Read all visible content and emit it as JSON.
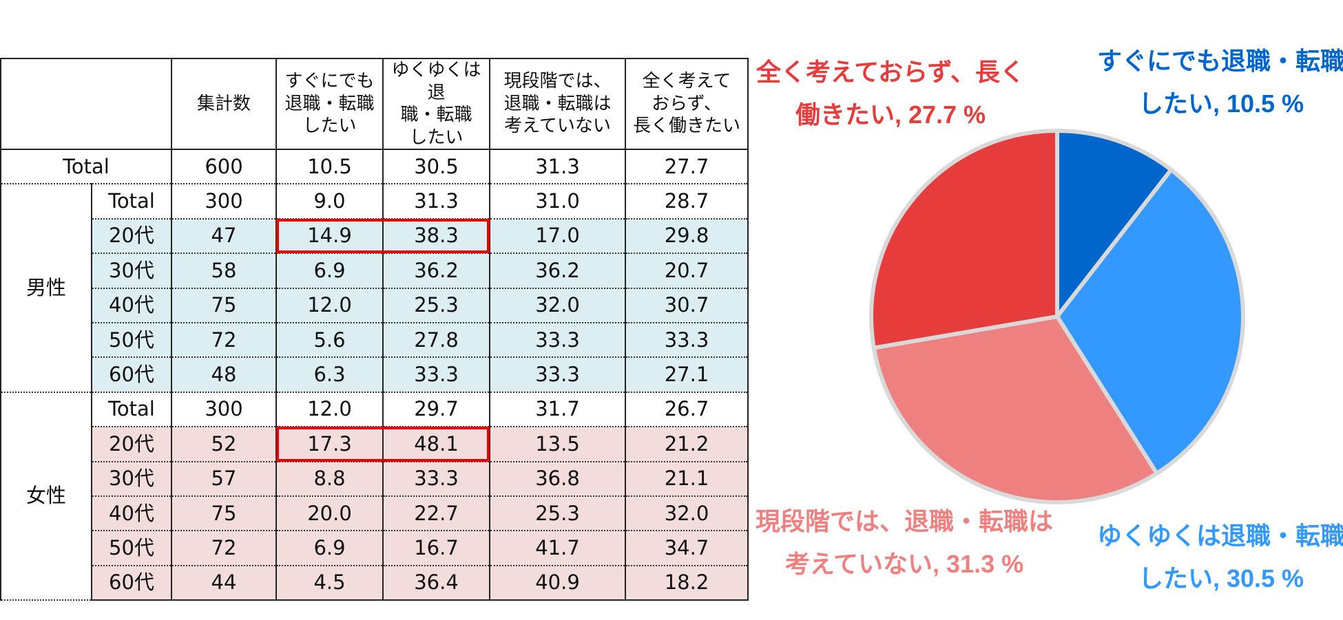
{
  "colors": {
    "male_bg": "#ddeef3",
    "female_bg": "#f2dcdc",
    "highlight": "#e60000",
    "slice_1": "#0066cc",
    "slice_2": "#3399ff",
    "slice_3": "#ef8080",
    "slice_4": "#e63c3c"
  },
  "table": {
    "headers": {
      "count": "集計数",
      "col1": [
        "すぐにでも",
        "退職・転職",
        "したい"
      ],
      "col2": [
        "ゆくゆくは退",
        "職・転職",
        "したい"
      ],
      "col3": [
        "現段階では、",
        "退職・転職は",
        "考えていない"
      ],
      "col4": [
        "全く考えて",
        "おらず、",
        "長く働きたい"
      ]
    },
    "total": {
      "label": "Total",
      "values": [
        "600",
        "10.5",
        "30.5",
        "31.3",
        "27.7"
      ]
    },
    "male": {
      "group": "男性",
      "rows": [
        {
          "label": "Total",
          "values": [
            "300",
            "9.0",
            "31.3",
            "31.0",
            "28.7"
          ]
        },
        {
          "label": "20代",
          "values": [
            "47",
            "14.9",
            "38.3",
            "17.0",
            "29.8"
          ]
        },
        {
          "label": "30代",
          "values": [
            "58",
            "6.9",
            "36.2",
            "36.2",
            "20.7"
          ]
        },
        {
          "label": "40代",
          "values": [
            "75",
            "12.0",
            "25.3",
            "32.0",
            "30.7"
          ]
        },
        {
          "label": "50代",
          "values": [
            "72",
            "5.6",
            "27.8",
            "33.3",
            "33.3"
          ]
        },
        {
          "label": "60代",
          "values": [
            "48",
            "6.3",
            "33.3",
            "33.3",
            "27.1"
          ]
        }
      ]
    },
    "female": {
      "group": "女性",
      "rows": [
        {
          "label": "Total",
          "values": [
            "300",
            "12.0",
            "29.7",
            "31.7",
            "26.7"
          ]
        },
        {
          "label": "20代",
          "values": [
            "52",
            "17.3",
            "48.1",
            "13.5",
            "21.2"
          ]
        },
        {
          "label": "30代",
          "values": [
            "57",
            "8.8",
            "33.3",
            "36.8",
            "21.1"
          ]
        },
        {
          "label": "40代",
          "values": [
            "75",
            "20.0",
            "22.7",
            "25.3",
            "32.0"
          ]
        },
        {
          "label": "50代",
          "values": [
            "72",
            "6.9",
            "16.7",
            "41.7",
            "34.7"
          ]
        },
        {
          "label": "60代",
          "values": [
            "44",
            "4.5",
            "36.4",
            "40.9",
            "18.2"
          ]
        }
      ]
    }
  },
  "chart_data": {
    "type": "pie",
    "slices": [
      {
        "label_lines": [
          "すぐにでも退職・転職",
          "したい, 10.5 %"
        ],
        "value": 10.5,
        "color": "#0066cc"
      },
      {
        "label_lines": [
          "ゆくゆくは退職・転職",
          "したい, 30.5 %"
        ],
        "value": 30.5,
        "color": "#3399ff"
      },
      {
        "label_lines": [
          "現段階では、退職・転職は",
          "考えていない, 31.3 %"
        ],
        "value": 31.3,
        "color": "#ef8080"
      },
      {
        "label_lines": [
          "全く考えておらず、長く",
          "働きたい, 27.7 %"
        ],
        "value": 27.7,
        "color": "#e63c3c"
      }
    ]
  }
}
